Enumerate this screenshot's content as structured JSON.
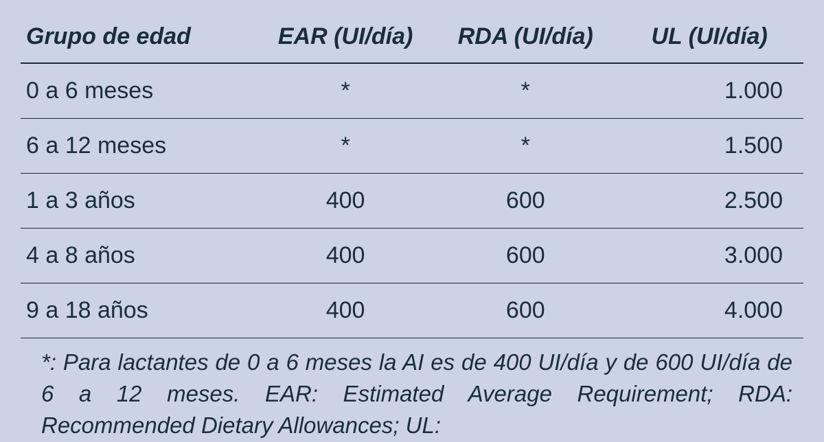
{
  "table": {
    "columns": [
      {
        "key": "group",
        "label": "Grupo de edad",
        "align": "left"
      },
      {
        "key": "ear",
        "label": "EAR (UI/día)",
        "align": "center"
      },
      {
        "key": "rda",
        "label": "RDA (UI/día)",
        "align": "center"
      },
      {
        "key": "ul",
        "label": "UL (UI/día)",
        "align": "center"
      }
    ],
    "rows": [
      {
        "group": "0 a 6 meses",
        "ear": "*",
        "rda": "*",
        "ul": "1.000"
      },
      {
        "group": "6 a 12 meses",
        "ear": "*",
        "rda": "*",
        "ul": "1.500"
      },
      {
        "group": "1 a 3 años",
        "ear": "400",
        "rda": "600",
        "ul": "2.500"
      },
      {
        "group": "4 a 8 años",
        "ear": "400",
        "rda": "600",
        "ul": "3.000"
      },
      {
        "group": "9 a 18 años",
        "ear": "400",
        "rda": "600",
        "ul": "4.000"
      }
    ],
    "background_color": "#cdd3e6",
    "text_color": "#1a2d3d",
    "border_color": "#1a2d3d",
    "header_fontsize": 34,
    "cell_fontsize": 34,
    "header_fontstyle": "italic bold",
    "cell_fontweight": 400
  },
  "footnote": {
    "text": "*: Para lactantes de 0 a 6 meses la AI es de 400 UI/día y de 600 UI/día de 6 a 12 meses. EAR: Estimated Average Requirement; RDA: Recommended Dietary Allowances; UL:",
    "fontsize": 33,
    "fontstyle": "italic",
    "color": "#1a2d3d"
  }
}
